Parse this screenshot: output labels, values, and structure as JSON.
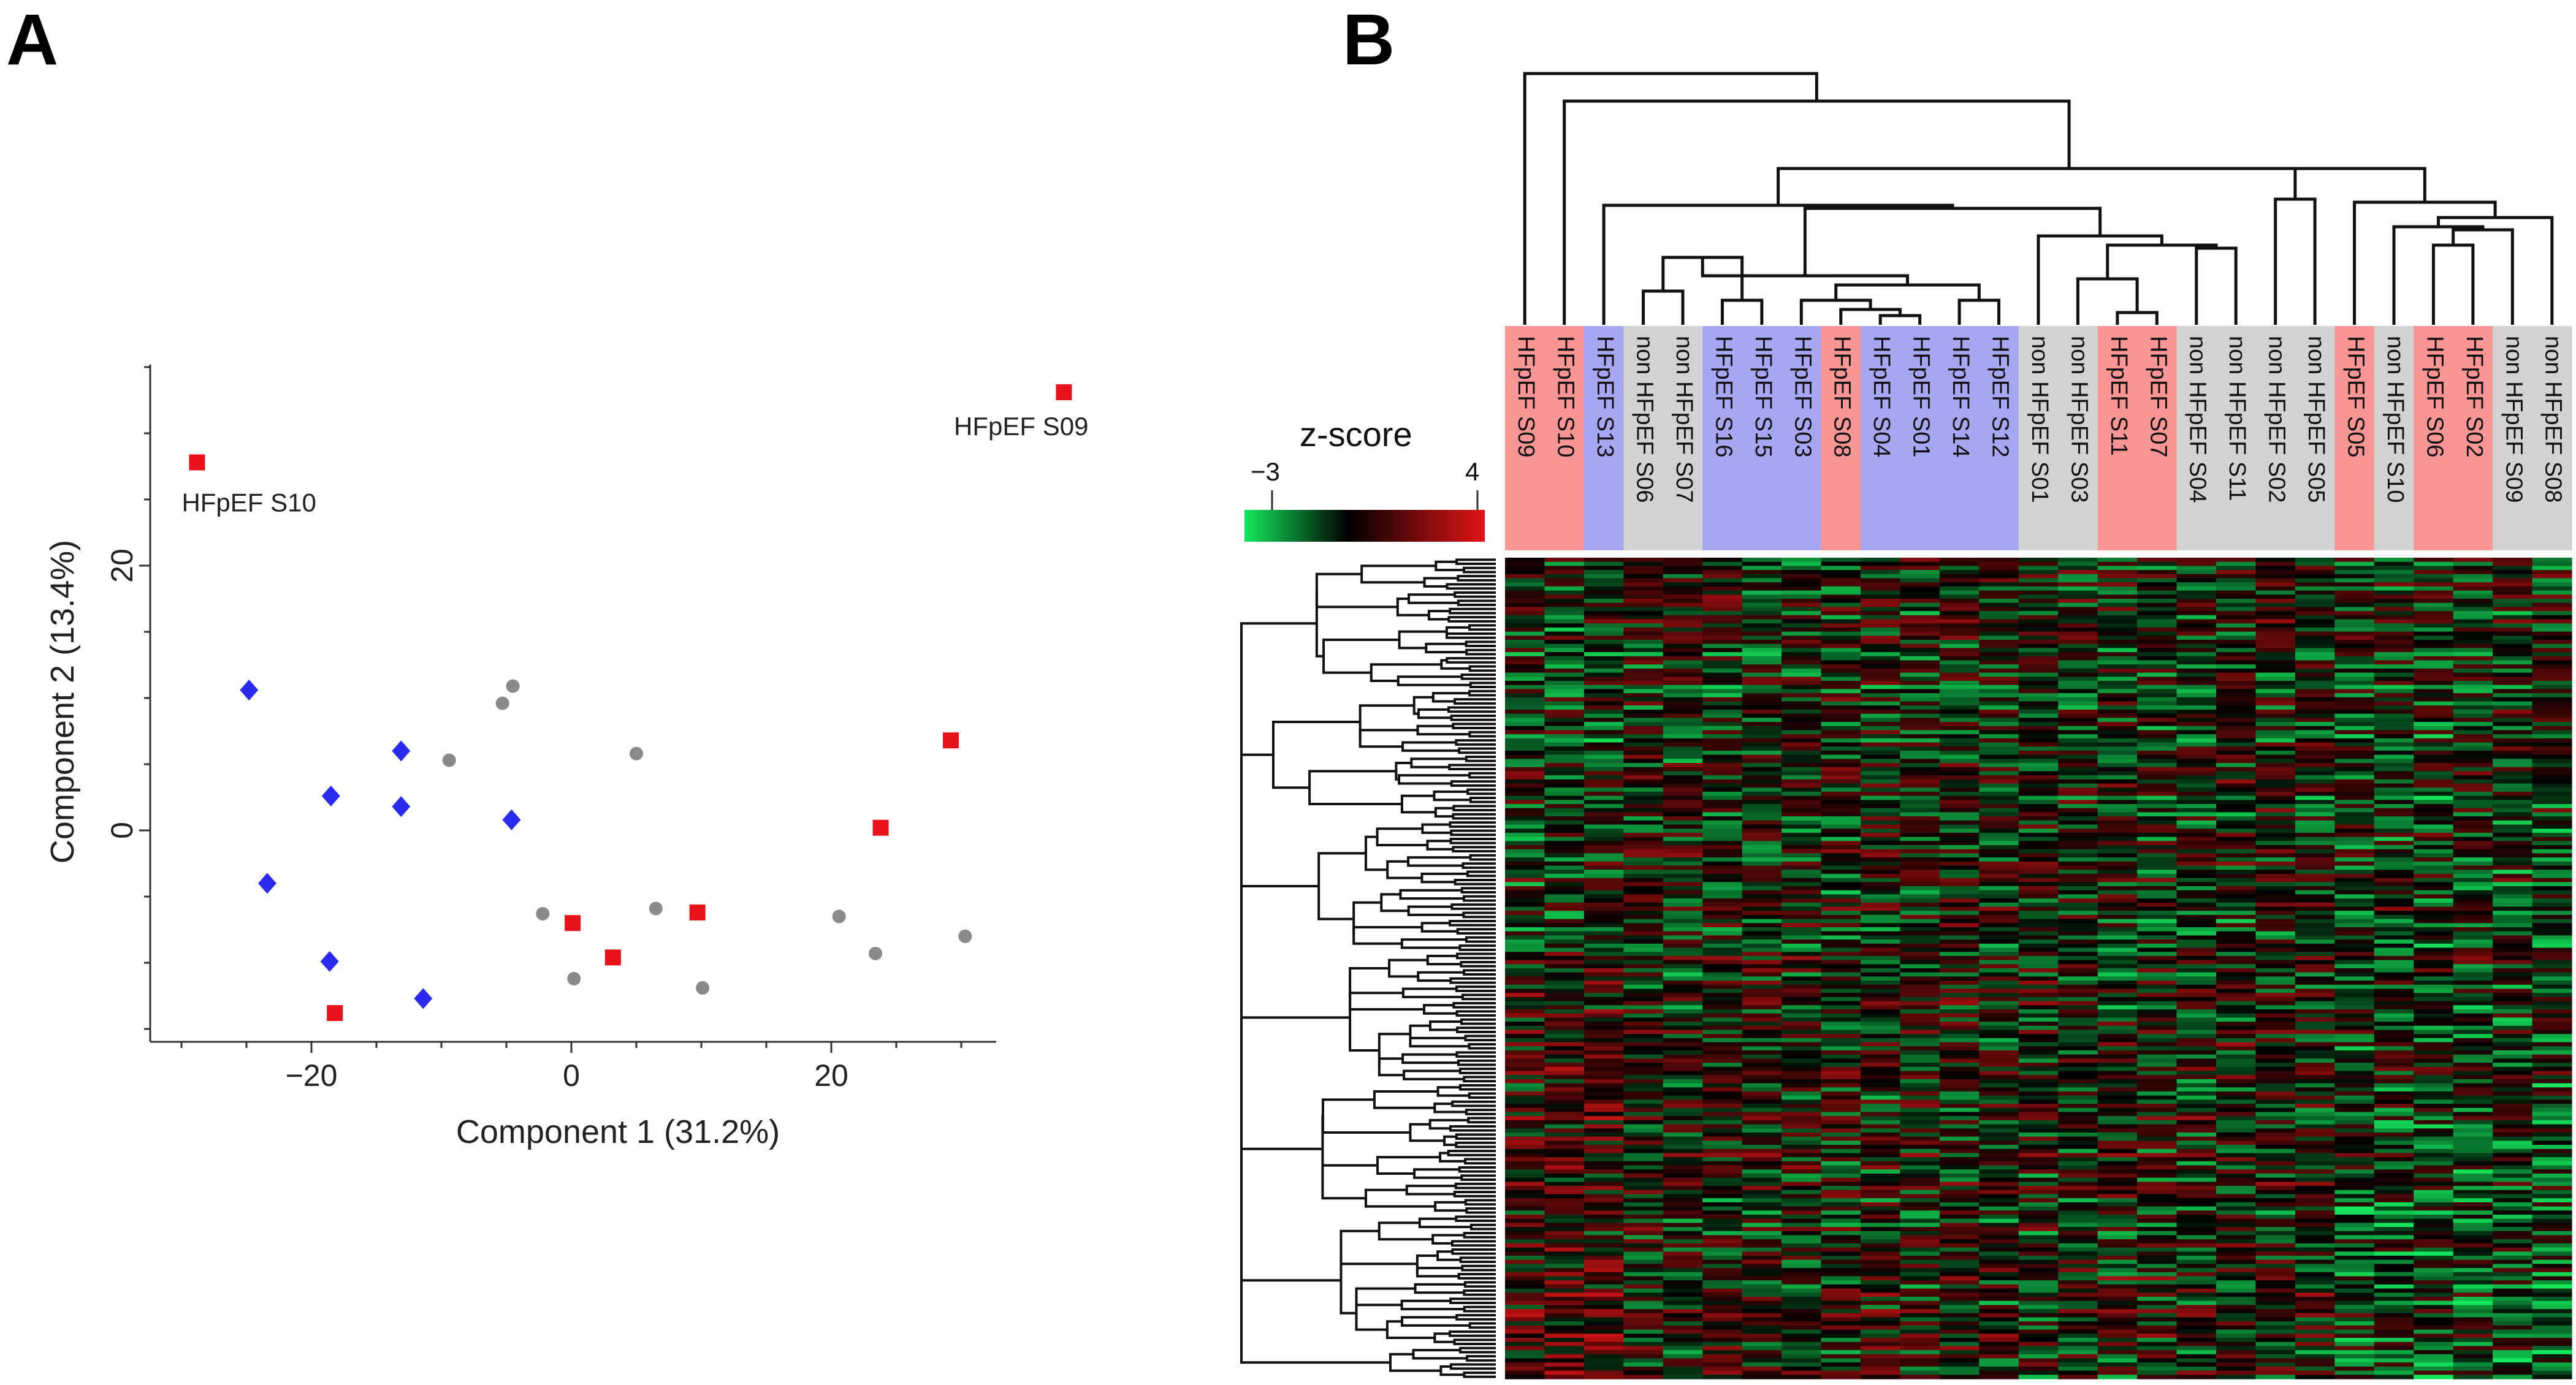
{
  "chart_data": [
    {
      "panel": "A",
      "type": "scatter",
      "title": "",
      "xlabel": "Component 1 (31.2%)",
      "ylabel": "Component 2 (13.4%)",
      "xticks": [
        -20,
        0,
        20
      ],
      "yticks": [
        0,
        20
      ],
      "xlim": [
        -31,
        39
      ],
      "ylim": [
        -16,
        35
      ],
      "grid": false,
      "series": [
        {
          "name": "group-red",
          "marker": "square",
          "color": "#e8131a",
          "points": [
            {
              "x": -28.8,
              "y": 27.8,
              "label": "HFpEF S10"
            },
            {
              "x": 37.9,
              "y": 33.1,
              "label": "HFpEF S09"
            },
            {
              "x": -18.2,
              "y": -13.8,
              "label": ""
            },
            {
              "x": 0.1,
              "y": -7.0,
              "label": ""
            },
            {
              "x": 3.2,
              "y": -9.6,
              "label": ""
            },
            {
              "x": 9.7,
              "y": -6.2,
              "label": ""
            },
            {
              "x": 23.8,
              "y": 0.2,
              "label": ""
            },
            {
              "x": 29.2,
              "y": 6.8,
              "label": ""
            }
          ]
        },
        {
          "name": "group-blue",
          "marker": "diamond",
          "color": "#2b2bf0",
          "points": [
            {
              "x": -24.8,
              "y": 10.6
            },
            {
              "x": -13.1,
              "y": 6.0
            },
            {
              "x": -18.5,
              "y": 2.6
            },
            {
              "x": -13.1,
              "y": 1.8
            },
            {
              "x": -4.6,
              "y": 0.8
            },
            {
              "x": -23.4,
              "y": -4.0
            },
            {
              "x": -18.6,
              "y": -9.9
            },
            {
              "x": -11.4,
              "y": -12.7
            }
          ]
        },
        {
          "name": "group-gray",
          "marker": "circle",
          "color": "#8a8a8a",
          "points": [
            {
              "x": -4.5,
              "y": 10.9
            },
            {
              "x": -5.3,
              "y": 9.6
            },
            {
              "x": -9.4,
              "y": 5.3
            },
            {
              "x": 5.0,
              "y": 5.8
            },
            {
              "x": -2.2,
              "y": -6.3
            },
            {
              "x": 6.5,
              "y": -5.9
            },
            {
              "x": 20.6,
              "y": -6.5
            },
            {
              "x": 23.4,
              "y": -9.3
            },
            {
              "x": 30.3,
              "y": -8.0
            },
            {
              "x": 0.2,
              "y": -11.2
            },
            {
              "x": 10.1,
              "y": -11.9
            }
          ]
        }
      ]
    },
    {
      "panel": "B",
      "type": "heatmap",
      "title": "",
      "colorbar": {
        "label": "z-score",
        "min": -3,
        "max": 4,
        "colors": [
          "#13e85c",
          "#000000",
          "#e11416"
        ]
      },
      "group_colors": {
        "HFpEF": "#f99595",
        "HFpEF-blue": "#a6a6f2",
        "non": "#d2d2d2"
      },
      "columns": [
        {
          "label": "HFpEF S09",
          "group": "HFpEF"
        },
        {
          "label": "HFpEF S10",
          "group": "HFpEF"
        },
        {
          "label": "HFpEF S13",
          "group": "HFpEF-blue"
        },
        {
          "label": "non HFpEF S06",
          "group": "non"
        },
        {
          "label": "non HFpEF S07",
          "group": "non"
        },
        {
          "label": "HFpEF S16",
          "group": "HFpEF-blue"
        },
        {
          "label": "HFpEF S15",
          "group": "HFpEF-blue"
        },
        {
          "label": "HFpEF S03",
          "group": "HFpEF-blue"
        },
        {
          "label": "HFpEF S08",
          "group": "HFpEF"
        },
        {
          "label": "HFpEF S04",
          "group": "HFpEF-blue"
        },
        {
          "label": "HFpEF S01",
          "group": "HFpEF-blue"
        },
        {
          "label": "HFpEF S14",
          "group": "HFpEF-blue"
        },
        {
          "label": "HFpEF S12",
          "group": "HFpEF-blue"
        },
        {
          "label": "non HFpEF S01",
          "group": "non"
        },
        {
          "label": "non HFpEF S03",
          "group": "non"
        },
        {
          "label": "HFpEF S11",
          "group": "HFpEF"
        },
        {
          "label": "HFpEF S07",
          "group": "HFpEF"
        },
        {
          "label": "non HFpEF S04",
          "group": "non"
        },
        {
          "label": "non HFpEF S11",
          "group": "non"
        },
        {
          "label": "non HFpEF S02",
          "group": "non"
        },
        {
          "label": "non HFpEF S05",
          "group": "non"
        },
        {
          "label": "HFpEF S05",
          "group": "HFpEF"
        },
        {
          "label": "non HFpEF S10",
          "group": "non"
        },
        {
          "label": "HFpEF S06",
          "group": "HFpEF"
        },
        {
          "label": "HFpEF S02",
          "group": "HFpEF"
        },
        {
          "label": "non HFpEF S09",
          "group": "non"
        },
        {
          "label": "non HFpEF S08",
          "group": "non"
        }
      ],
      "row_count": 200
    }
  ],
  "labels": {
    "panel_a": "A",
    "panel_b": "B"
  }
}
